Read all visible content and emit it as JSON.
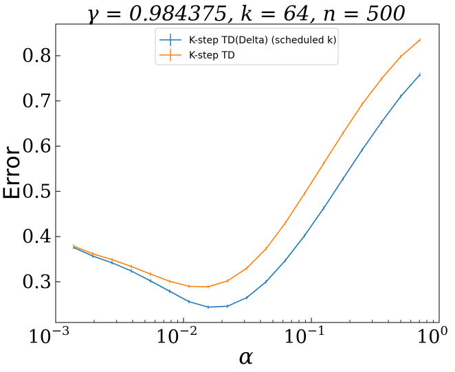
{
  "chart_data": {
    "type": "line",
    "title": "γ = 0.984375, k = 64, n = 500",
    "xlabel": "α",
    "ylabel": "Error",
    "x_scale": "log",
    "xlim": [
      0.001,
      1
    ],
    "ylim": [
      0.21,
      0.87
    ],
    "x_ticks": [
      {
        "value": 0.001,
        "base": "10",
        "exp": "−3"
      },
      {
        "value": 0.01,
        "base": "10",
        "exp": "−2"
      },
      {
        "value": 0.1,
        "base": "10",
        "exp": "−1"
      },
      {
        "value": 1,
        "base": "10",
        "exp": "0"
      }
    ],
    "y_ticks": [
      {
        "value": 0.3,
        "label": "0.3"
      },
      {
        "value": 0.4,
        "label": "0.4"
      },
      {
        "value": 0.5,
        "label": "0.5"
      },
      {
        "value": 0.6,
        "label": "0.6"
      },
      {
        "value": 0.7,
        "label": "0.7"
      },
      {
        "value": 0.8,
        "label": "0.8"
      }
    ],
    "legend_position": "top-center",
    "grid": false,
    "x": [
      0.00138,
      0.00195,
      0.00276,
      0.0039,
      0.00552,
      0.0078,
      0.01105,
      0.0156,
      0.0221,
      0.03125,
      0.0442,
      0.0625,
      0.0884,
      0.125,
      0.177,
      0.25,
      0.354,
      0.5,
      0.707
    ],
    "series": [
      {
        "name": "K-step TD(Delta) (scheduled k)",
        "color": "#1f77b4",
        "values": [
          0.376,
          0.357,
          0.342,
          0.324,
          0.302,
          0.279,
          0.256,
          0.244,
          0.246,
          0.265,
          0.3,
          0.347,
          0.402,
          0.463,
          0.528,
          0.592,
          0.653,
          0.71,
          0.758
        ]
      },
      {
        "name": "K-step TD",
        "color": "#ff7f0e",
        "values": [
          0.379,
          0.362,
          0.349,
          0.334,
          0.317,
          0.301,
          0.29,
          0.289,
          0.302,
          0.33,
          0.373,
          0.43,
          0.495,
          0.562,
          0.629,
          0.693,
          0.749,
          0.798,
          0.835
        ]
      }
    ]
  }
}
